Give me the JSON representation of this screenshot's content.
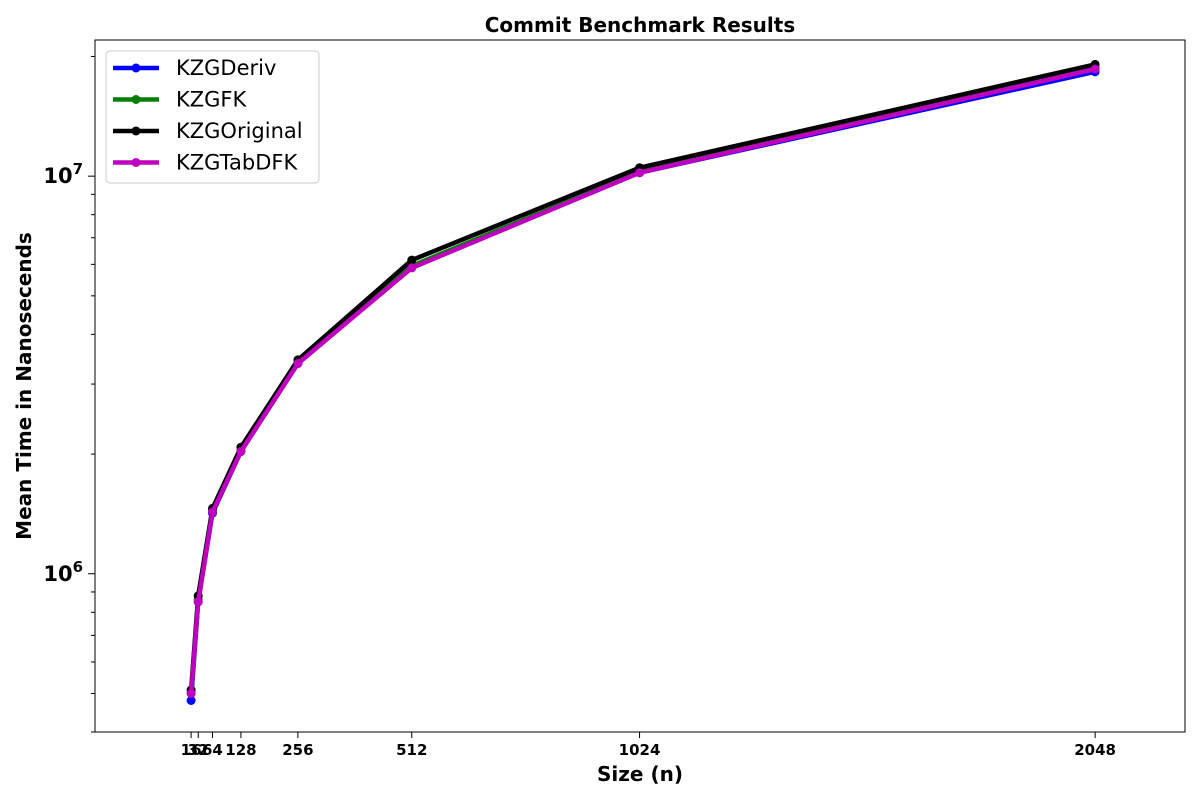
{
  "chart_data": {
    "type": "line",
    "title": "Commit Benchmark Results",
    "xlabel": "Size (n)",
    "ylabel": "Mean Time in Nanosecends",
    "x": [
      16,
      32,
      64,
      128,
      256,
      512,
      1024,
      2048
    ],
    "xtick_labels": [
      "16",
      "32",
      "64",
      "128",
      "256",
      "512",
      "1024",
      "2048"
    ],
    "y_scale": "log",
    "ytick_labels": [
      {
        "value": 1000000,
        "base": "10",
        "exp": "6"
      },
      {
        "value": 10000000,
        "base": "10",
        "exp": "7"
      }
    ],
    "xlim": [
      -200,
      2250
    ],
    "ylim": [
      400000,
      22000000
    ],
    "grid": false,
    "legend_position": "top-left",
    "series": [
      {
        "name": "KZGDeriv",
        "color": "#0000ff",
        "values": [
          480000,
          850000,
          1420000,
          2030000,
          3380000,
          5900000,
          10200000,
          18300000
        ]
      },
      {
        "name": "KZGFK",
        "color": "#008000",
        "values": [
          500000,
          860000,
          1440000,
          2040000,
          3400000,
          5950000,
          10250000,
          18700000
        ]
      },
      {
        "name": "KZGOriginal",
        "color": "#000000",
        "values": [
          510000,
          880000,
          1460000,
          2080000,
          3450000,
          6150000,
          10500000,
          19100000
        ]
      },
      {
        "name": "KZGTabDFK",
        "color": "#bf00bf",
        "values": [
          500000,
          850000,
          1430000,
          2030000,
          3380000,
          5880000,
          10200000,
          18600000
        ]
      }
    ]
  }
}
